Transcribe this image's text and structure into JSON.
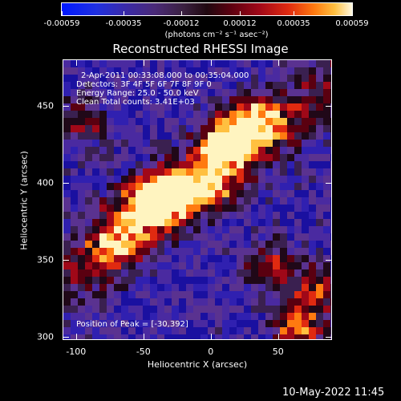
{
  "chart_data": {
    "type": "heatmap",
    "title": "Reconstructed RHESSI Image",
    "colorbar": {
      "ticks": [
        "-0.00059",
        "-0.00035",
        "-0.00012",
        "0.00012",
        "0.00035",
        "0.00059"
      ],
      "units": "(photons cm⁻² s⁻¹ asec⁻²)"
    },
    "annotations": [
      "2-Apr-2011 00:33:08.000 to 00:35:04.000",
      "Detectors: 3F 4F 5F 6F 7F 8F 9F 0",
      "Energy Range: 25.0 - 50.0 keV",
      "Clean    Total counts: 3.41E+03"
    ],
    "peak_label": "Position of Peak = [-30,392]",
    "xlabel": "Heliocentric X (arcsec)",
    "ylabel": "Heliocentric Y (arcsec)",
    "xlim": [
      -110,
      90
    ],
    "ylim": [
      298,
      480
    ],
    "xticks": [
      "-100",
      "-50",
      "0",
      "50"
    ],
    "yticks": [
      "450",
      "400",
      "350",
      "300"
    ],
    "sources": [
      {
        "x": -30,
        "y": 392,
        "intensity": 1.0
      },
      {
        "x": 12,
        "y": 425,
        "intensity": 0.95
      },
      {
        "x": -50,
        "y": 385,
        "intensity": 0.8
      },
      {
        "x": 35,
        "y": 440,
        "intensity": 0.75
      },
      {
        "x": -70,
        "y": 360,
        "intensity": 0.55
      },
      {
        "x": -95,
        "y": 440,
        "intensity": 0.55
      },
      {
        "x": 45,
        "y": 345,
        "intensity": 0.6
      },
      {
        "x": 65,
        "y": 305,
        "intensity": 0.8
      },
      {
        "x": 80,
        "y": 330,
        "intensity": 0.6
      },
      {
        "x": 0,
        "y": 400,
        "intensity": 0.6
      }
    ]
  },
  "footer": "10-May-2022 11:45"
}
